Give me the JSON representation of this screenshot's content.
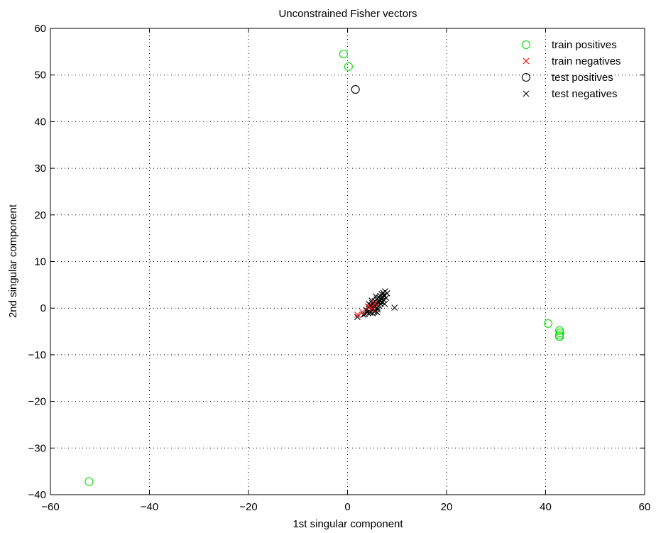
{
  "chart_data": {
    "type": "scatter",
    "title": "Unconstrained Fisher vectors",
    "xlabel": "1st singular component",
    "ylabel": "2nd singular component",
    "xlim": [
      -60,
      60
    ],
    "ylim": [
      -40,
      60
    ],
    "xticks": [
      -60,
      -40,
      -20,
      0,
      20,
      40,
      60
    ],
    "yticks": [
      -40,
      -30,
      -20,
      -10,
      0,
      10,
      20,
      30,
      40,
      50,
      60
    ],
    "grid": true,
    "legend_position": "top-right",
    "series": [
      {
        "name": "train positives",
        "marker": "circle",
        "color": "#00dd00",
        "points": [
          [
            -0.8,
            54.5
          ],
          [
            0.2,
            51.8
          ],
          [
            40.5,
            -3.3
          ],
          [
            42.8,
            -4.8
          ],
          [
            42.9,
            -5.3
          ],
          [
            42.8,
            -5.8
          ],
          [
            42.8,
            -6.1
          ],
          [
            -52.2,
            -37.2
          ]
        ]
      },
      {
        "name": "train negatives",
        "marker": "x",
        "color": "#ff0000",
        "points": [
          [
            2.0,
            -1.4
          ],
          [
            3.0,
            -0.8
          ],
          [
            4.2,
            0.4
          ],
          [
            5.5,
            1.0
          ],
          [
            5.0,
            -0.2
          ]
        ]
      },
      {
        "name": "test positives",
        "marker": "circle",
        "color": "#000000",
        "points": [
          [
            1.6,
            46.9
          ]
        ]
      },
      {
        "name": "test negatives",
        "marker": "x",
        "color": "#000000",
        "points": [
          [
            2.0,
            -1.9
          ],
          [
            3.5,
            -1.3
          ],
          [
            3.8,
            -0.4
          ],
          [
            4.2,
            0.3
          ],
          [
            4.5,
            -0.8
          ],
          [
            4.8,
            0.6
          ],
          [
            5.0,
            1.1
          ],
          [
            5.2,
            -0.2
          ],
          [
            5.3,
            0.4
          ],
          [
            5.5,
            1.5
          ],
          [
            5.6,
            -0.6
          ],
          [
            5.8,
            0.8
          ],
          [
            5.9,
            1.9
          ],
          [
            6.0,
            0.1
          ],
          [
            6.1,
            -0.3
          ],
          [
            6.2,
            1.2
          ],
          [
            6.3,
            2.3
          ],
          [
            6.4,
            0.5
          ],
          [
            6.5,
            1.6
          ],
          [
            6.6,
            2.6
          ],
          [
            6.7,
            0.9
          ],
          [
            6.8,
            2.0
          ],
          [
            6.9,
            3.0
          ],
          [
            7.0,
            1.3
          ],
          [
            7.1,
            2.4
          ],
          [
            7.2,
            3.3
          ],
          [
            7.3,
            1.8
          ],
          [
            7.4,
            2.8
          ],
          [
            7.6,
            3.6
          ],
          [
            7.8,
            2.2
          ],
          [
            8.0,
            3.2
          ],
          [
            4.0,
            -0.9
          ],
          [
            4.6,
            -1.0
          ],
          [
            5.1,
            -1.1
          ],
          [
            5.4,
            -0.8
          ],
          [
            6.0,
            -0.9
          ],
          [
            4.3,
            0.9
          ],
          [
            4.9,
            1.6
          ],
          [
            5.7,
            2.5
          ],
          [
            6.6,
            1.5
          ],
          [
            7.5,
            0.9
          ],
          [
            3.2,
            -1.4
          ],
          [
            9.5,
            0.1
          ]
        ]
      }
    ]
  }
}
